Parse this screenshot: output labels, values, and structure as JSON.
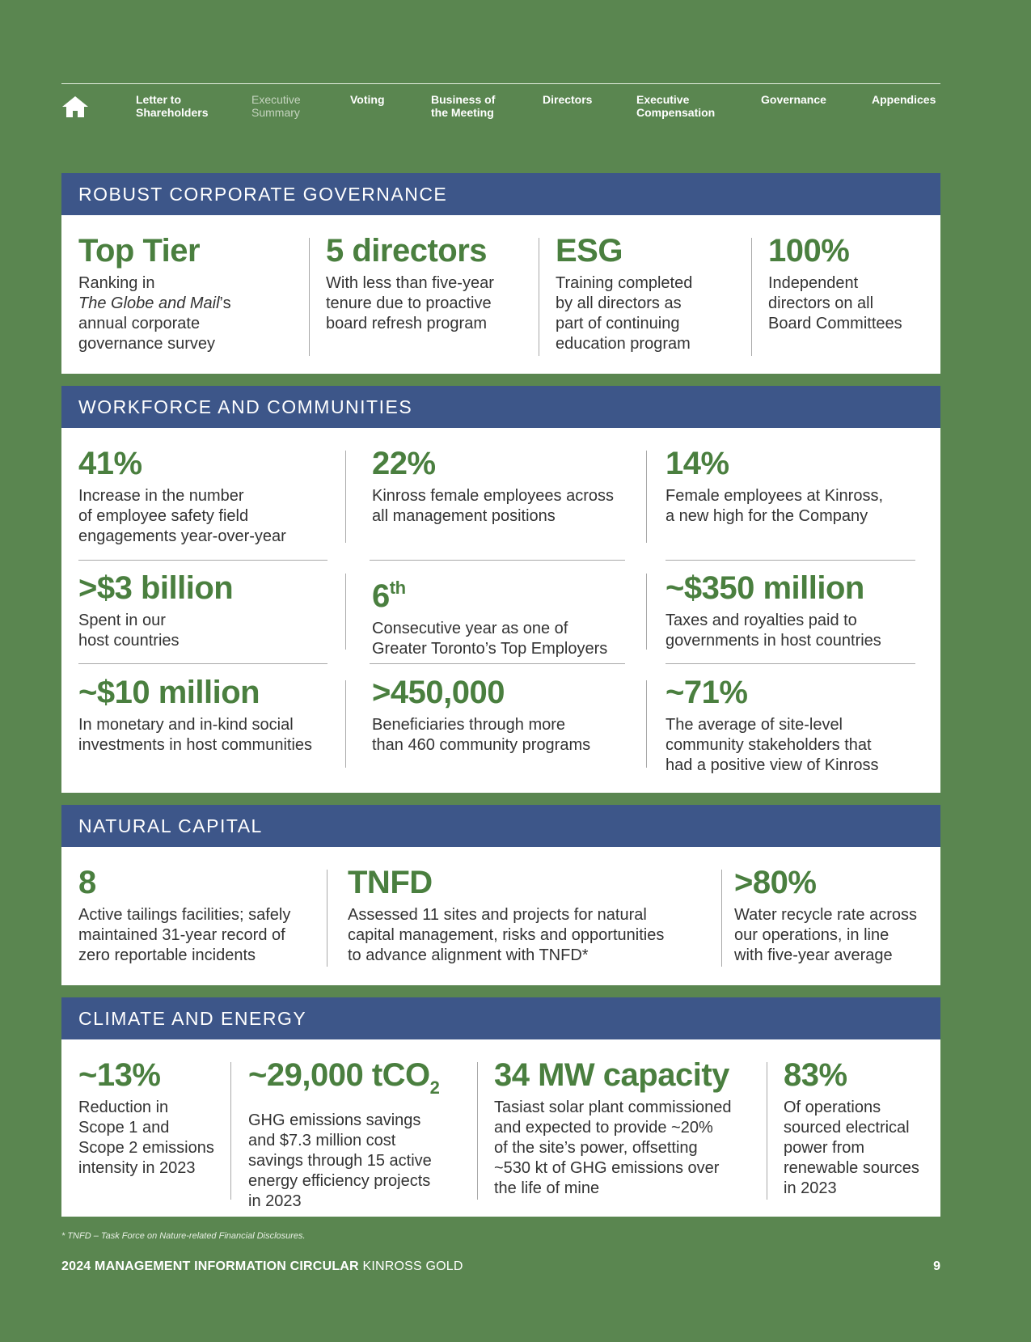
{
  "nav": {
    "home_icon": "home-icon",
    "items": [
      {
        "label": "Letter to\nShareholders"
      },
      {
        "label": "Executive\nSummary"
      },
      {
        "label": "Voting"
      },
      {
        "label": "Business of\nthe Meeting"
      },
      {
        "label": "Directors"
      },
      {
        "label": "Executive\nCompensation"
      },
      {
        "label": "Governance"
      },
      {
        "label": "Appendices"
      }
    ]
  },
  "governance": {
    "title": "ROBUST CORPORATE GOVERNANCE",
    "stats": [
      {
        "value": "Top Tier",
        "desc_pre": "Ranking in",
        "desc_italic": "The Globe and Mail",
        "desc_post": "’s annual corporate governance survey"
      },
      {
        "value": "5 directors",
        "desc": "With less than five-year\ntenure due to proactive\nboard refresh program"
      },
      {
        "value": "ESG",
        "desc": "Training completed\nby all directors as\npart of continuing\neducation program"
      },
      {
        "value": "100%",
        "desc": "Independent\ndirectors on all\nBoard Committees"
      }
    ]
  },
  "workforce": {
    "title": "WORKFORCE AND COMMUNITIES",
    "stats": [
      {
        "value": "41%",
        "desc": "Increase in the number\nof employee safety field\nengagements year-over-year"
      },
      {
        "value": "22%",
        "desc": "Kinross female employees across\nall management positions"
      },
      {
        "value": "14%",
        "desc": "Female employees at Kinross,\na new high for the Company"
      },
      {
        "value": ">$3 billion",
        "desc": "Spent in our\nhost countries"
      },
      {
        "value": "6",
        "value_sup": "th",
        "desc": "Consecutive year as one of\nGreater Toronto’s Top Employers"
      },
      {
        "value": "~$350 million",
        "desc": "Taxes and royalties paid to\ngovernments in host countries"
      },
      {
        "value": "~$10 million",
        "desc": "In monetary and in-kind social\ninvestments in host communities"
      },
      {
        "value": ">450,000",
        "desc": "Beneficiaries through more\nthan 460 community programs"
      },
      {
        "value": "~71%",
        "desc": "The average of site-level\ncommunity stakeholders that\nhad a positive view of Kinross"
      }
    ]
  },
  "natural": {
    "title": "NATURAL CAPITAL",
    "stats": [
      {
        "value": "8",
        "desc": "Active tailings facilities; safely\nmaintained 31-year record of\nzero reportable incidents"
      },
      {
        "value": "TNFD",
        "desc": "Assessed 11 sites and projects for natural\ncapital management, risks and opportunities\nto advance alignment with TNFD*"
      },
      {
        "value": ">80%",
        "desc": "Water recycle rate across\nour operations, in line\nwith five-year average"
      }
    ]
  },
  "climate": {
    "title": "CLIMATE AND ENERGY",
    "stats": [
      {
        "value": "~13%",
        "desc": "Reduction in\nScope 1 and\nScope 2 emissions\nintensity in 2023"
      },
      {
        "value": "~29,000 tCO",
        "value_sub": "2",
        "desc": "GHG emissions savings\nand $7.3 million cost\nsavings through 15 active\nenergy efficiency projects\nin 2023"
      },
      {
        "value": "34 MW capacity",
        "desc": "Tasiast solar plant commissioned\nand expected to provide ~20%\nof the site’s power, offsetting\n~530 kt of GHG emissions over\nthe life of mine"
      },
      {
        "value": "83%",
        "desc": "Of operations\nsourced electrical\npower from\nrenewable sources\nin 2023"
      }
    ]
  },
  "footnote": "* TNFD – Task Force on Nature-related Financial Disclosures.",
  "footer": {
    "title_bold": "2024 MANAGEMENT INFORMATION CIRCULAR",
    "title_rest": " KINROSS GOLD",
    "page": "9"
  }
}
